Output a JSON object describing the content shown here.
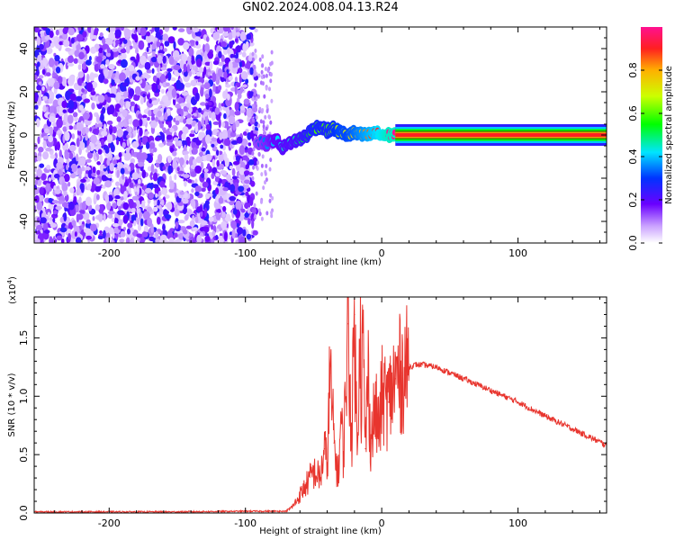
{
  "title": "GN02.2024.008.04.13.R24",
  "colors": {
    "snr_line": "#e8352e",
    "background": "#ffffff",
    "axis": "#000000"
  },
  "colorbar": {
    "label": "Normalized spectral amplitude",
    "ticks": [
      "0.0",
      "0.2",
      "0.4",
      "0.6",
      "0.8"
    ],
    "tick_values": [
      0.0,
      0.2,
      0.4,
      0.6,
      0.8
    ],
    "range": [
      0,
      1
    ],
    "colormap": "rainbow (white-purple-blue-cyan-green-yellow-red-magenta)"
  },
  "chart_data": [
    {
      "type": "heatmap",
      "name": "spectrogram",
      "xlabel": "Height of straight line (km)",
      "ylabel": "Frequency (Hz)",
      "xlim": [
        -255,
        165
      ],
      "ylim": [
        -50,
        50
      ],
      "x_ticks": [
        "-200",
        "-100",
        "0",
        "100"
      ],
      "x_tick_values": [
        -200,
        -100,
        0,
        100
      ],
      "y_ticks": [
        "-40",
        "-20",
        "0",
        "20",
        "40"
      ],
      "y_tick_values": [
        -40,
        -20,
        0,
        20,
        40
      ],
      "noise_region_x": [
        -255,
        -92
      ],
      "transition_region_x": [
        -92,
        10
      ],
      "tone_region_x": [
        10,
        165
      ],
      "tone_frequency_hz": 0,
      "tone_width_hz": 2.5,
      "tone_amplitude": 1.0,
      "transition_track": {
        "x": [
          -92,
          -85,
          -78,
          -72,
          -66,
          -60,
          -55,
          -50,
          -45,
          -40,
          -35,
          -30,
          -25,
          -20,
          -15,
          -10,
          -5,
          0,
          5,
          10
        ],
        "y": [
          -3,
          -4,
          -2,
          -6,
          -3,
          -2,
          0,
          3,
          4,
          2,
          3,
          1,
          0,
          1,
          0,
          0,
          1,
          0,
          0,
          0
        ],
        "amplitude": [
          0.3,
          0.35,
          0.4,
          0.45,
          0.45,
          0.5,
          0.55,
          0.6,
          0.6,
          0.6,
          0.65,
          0.7,
          0.7,
          0.75,
          0.8,
          0.85,
          0.9,
          0.95,
          1.0,
          1.0
        ]
      }
    },
    {
      "type": "line",
      "name": "snr",
      "xlabel": "Height of straight line (km)",
      "ylabel": "SNR (10 * v/v)",
      "y_scale_label": "(x10",
      "y_scale_exponent": "4",
      "y_scale_suffix": ")",
      "xlim": [
        -255,
        165
      ],
      "ylim": [
        0,
        18500
      ],
      "x_ticks": [
        "-200",
        "-100",
        "0",
        "100"
      ],
      "x_tick_values": [
        -200,
        -100,
        0,
        100
      ],
      "y_ticks": [
        "0.0",
        "0.5",
        "1.0",
        "1.5"
      ],
      "y_tick_values": [
        0,
        5000,
        10000,
        15000
      ],
      "series": [
        {
          "x": [
            -255,
            -150,
            -100,
            -70,
            -65,
            -60,
            -55,
            -50,
            -45,
            -42,
            -40,
            -38,
            -35,
            -32,
            -30,
            -28,
            -25,
            -22,
            -20,
            -18,
            -16,
            -15,
            -14,
            -12,
            -10,
            -8,
            -5,
            -2,
            0,
            5,
            10,
            15,
            20,
            25,
            30,
            35,
            40,
            50,
            60,
            80,
            100,
            120,
            140,
            165
          ],
          "y": [
            100,
            100,
            150,
            150,
            600,
            1500,
            2500,
            3500,
            3000,
            5500,
            4000,
            12000,
            6000,
            3000,
            8000,
            5000,
            16200,
            6500,
            17000,
            5000,
            19000,
            9000,
            15600,
            5500,
            12000,
            6000,
            9000,
            7000,
            10000,
            9500,
            11500,
            12000,
            12500,
            12700,
            12700,
            12600,
            12500,
            12000,
            11500,
            10500,
            9500,
            8300,
            7200,
            5800
          ]
        }
      ]
    }
  ]
}
